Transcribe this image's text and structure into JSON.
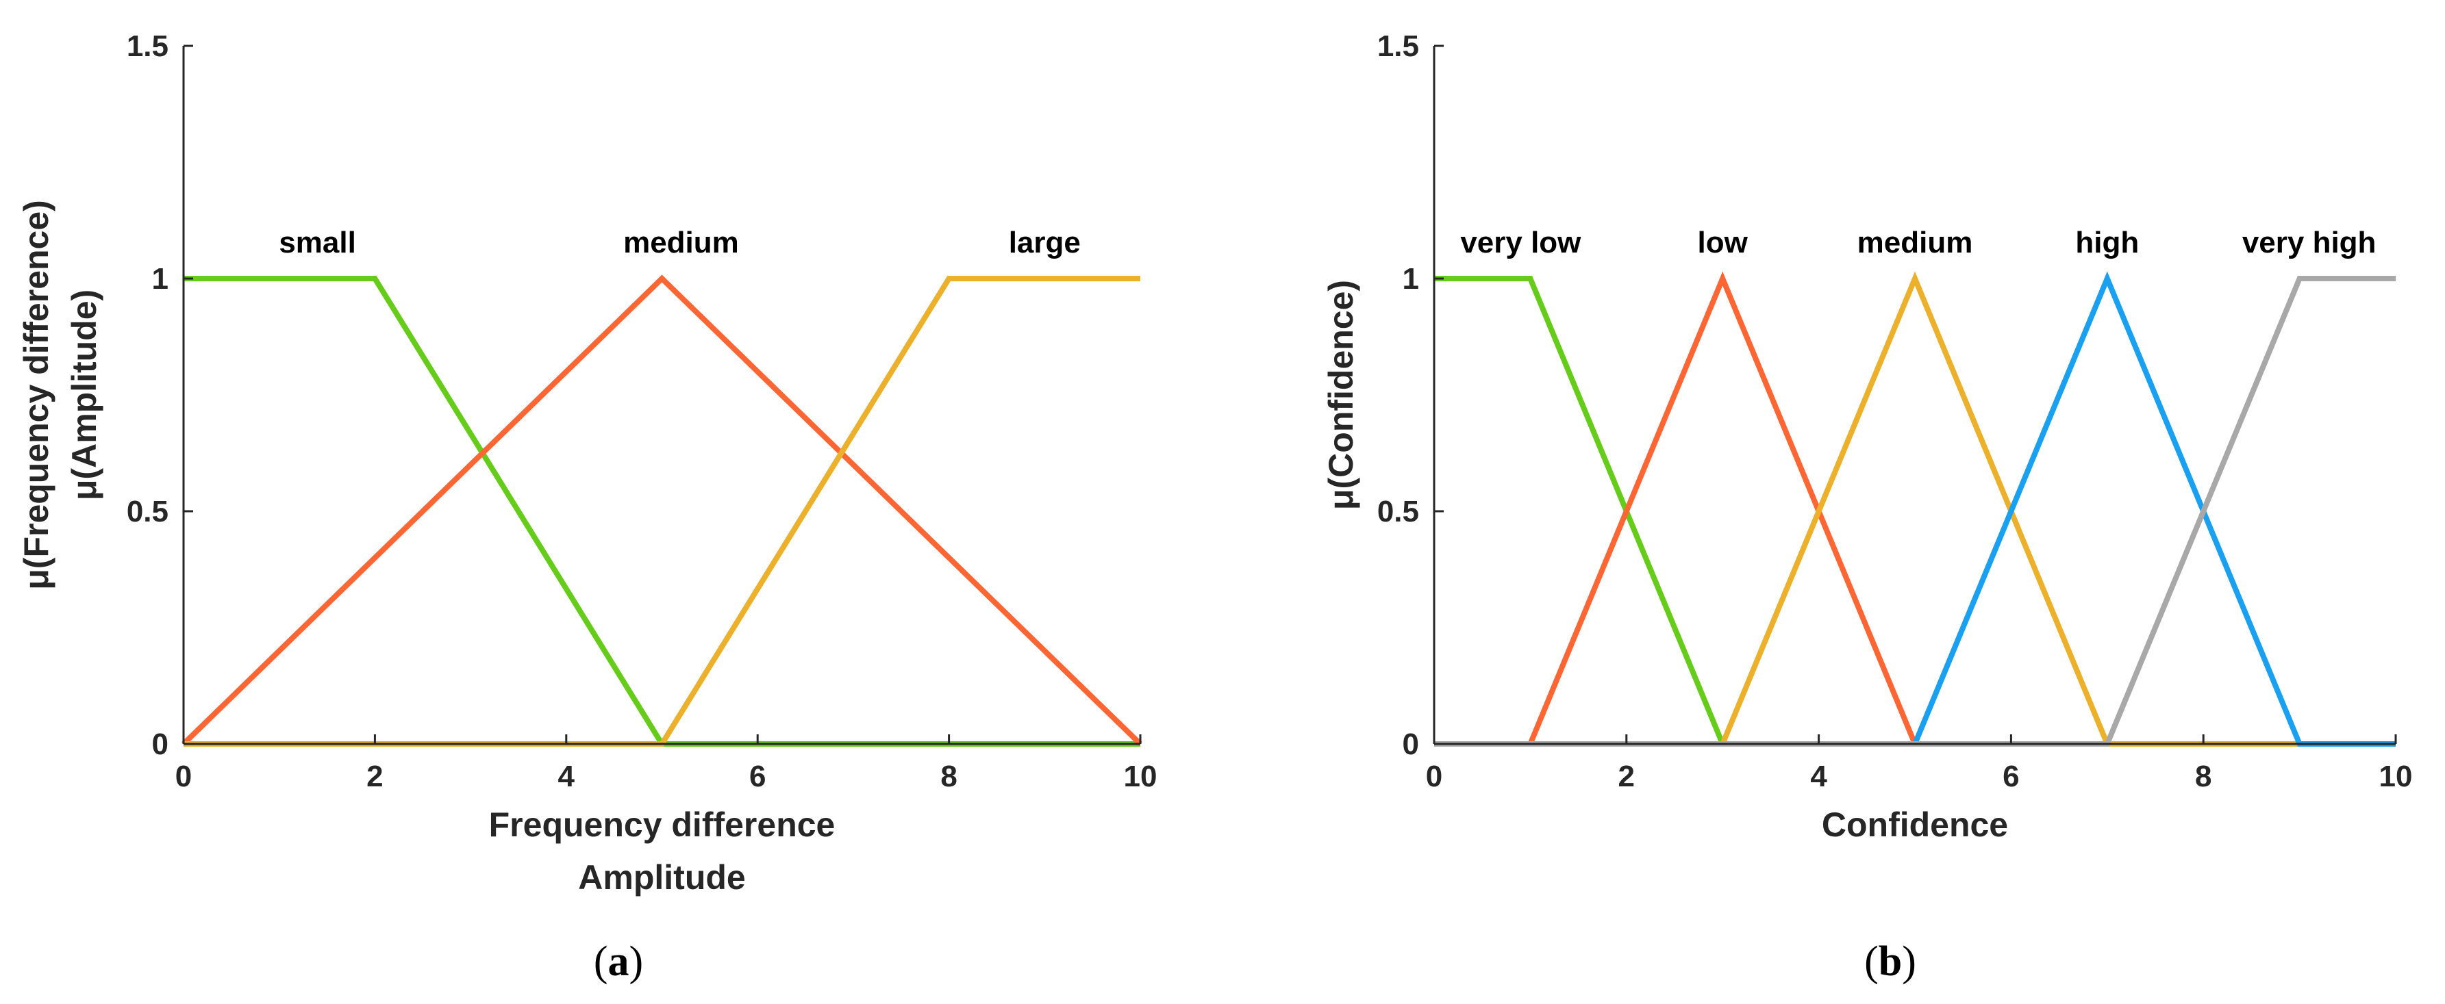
{
  "chart_data": [
    {
      "type": "line",
      "caption_letter": "a",
      "xlabel_lines": [
        "Frequency difference",
        "Amplitude"
      ],
      "ylabel_lines": [
        "μ(Frequency difference)",
        "μ(Amplitude)"
      ],
      "xlim": [
        0,
        10
      ],
      "ylim": [
        0,
        1.5
      ],
      "xticks": [
        0,
        2,
        4,
        6,
        8,
        10
      ],
      "yticks": [
        0,
        0.5,
        1,
        1.5
      ],
      "series": [
        {
          "name": "small",
          "color": "#66cc1a",
          "x": [
            0,
            2,
            5,
            10
          ],
          "y": [
            1,
            1,
            0,
            0
          ],
          "label_x": 1.4
        },
        {
          "name": "medium",
          "color": "#ff6633",
          "x": [
            0,
            5,
            10
          ],
          "y": [
            0,
            1,
            0
          ],
          "label_x": 5.2
        },
        {
          "name": "large",
          "color": "#ecb02a",
          "x": [
            0,
            5,
            8,
            10
          ],
          "y": [
            0,
            0,
            1,
            1
          ],
          "label_x": 9.0
        }
      ]
    },
    {
      "type": "line",
      "caption_letter": "b",
      "xlabel_lines": [
        "Confidence"
      ],
      "ylabel_lines": [
        "μ(Confidence)"
      ],
      "xlim": [
        0,
        10
      ],
      "ylim": [
        0,
        1.5
      ],
      "xticks": [
        0,
        2,
        4,
        6,
        8,
        10
      ],
      "yticks": [
        0,
        0.5,
        1,
        1.5
      ],
      "series": [
        {
          "name": "very low",
          "color": "#66cc1a",
          "x": [
            0,
            1,
            3,
            10
          ],
          "y": [
            1,
            1,
            0,
            0
          ],
          "label_x": 0.9
        },
        {
          "name": "low",
          "color": "#ff6633",
          "x": [
            0,
            1,
            3,
            5,
            10
          ],
          "y": [
            0,
            0,
            1,
            0,
            0
          ],
          "label_x": 3.0
        },
        {
          "name": "medium",
          "color": "#ecb02a",
          "x": [
            0,
            3,
            5,
            7,
            10
          ],
          "y": [
            0,
            0,
            1,
            0,
            0
          ],
          "label_x": 5.0
        },
        {
          "name": "high",
          "color": "#1aa0f0",
          "x": [
            0,
            5,
            7,
            9,
            10
          ],
          "y": [
            0,
            0,
            1,
            0,
            0
          ],
          "label_x": 7.0
        },
        {
          "name": "very high",
          "color": "#a8a8a8",
          "x": [
            0,
            7,
            9,
            10
          ],
          "y": [
            0,
            0,
            1,
            1
          ],
          "label_x": 9.1
        }
      ]
    }
  ]
}
